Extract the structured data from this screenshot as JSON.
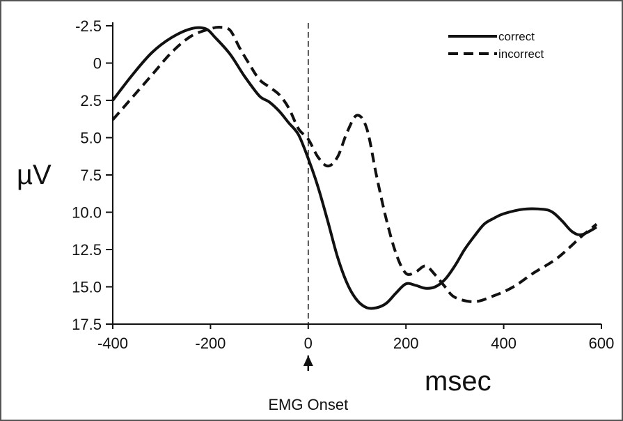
{
  "chart_data": {
    "type": "line",
    "title": "",
    "xlabel": "msec",
    "ylabel": "µV",
    "xlim": [
      -400,
      600
    ],
    "ylim": [
      -2.5,
      17.5
    ],
    "y_inverted": true,
    "grid": false,
    "legend_position": "top-right",
    "x_ticks": [
      -400,
      -200,
      0,
      200,
      400,
      600
    ],
    "x_tick_labels": [
      "-400",
      "-200",
      "0",
      "200",
      "400",
      "600"
    ],
    "y_ticks": [
      -2.5,
      0,
      2.5,
      5,
      7.5,
      10,
      12.5,
      15,
      17.5
    ],
    "y_tick_labels": [
      "-2.5",
      "0",
      "2.5",
      "5.0",
      "7.5",
      "10.0",
      "12.5",
      "15.0",
      "17.5"
    ],
    "vline": {
      "x": 0,
      "style": "dashed"
    },
    "annotation": {
      "text": "EMG Onset",
      "x": 0
    },
    "series": [
      {
        "name": "correct",
        "style": "solid",
        "color": "#111111",
        "x": [
          -400,
          -360,
          -320,
          -280,
          -240,
          -210,
          -190,
          -160,
          -130,
          -100,
          -80,
          -60,
          -40,
          -20,
          0,
          20,
          40,
          60,
          80,
          100,
          120,
          140,
          160,
          180,
          200,
          220,
          240,
          260,
          280,
          300,
          320,
          340,
          360,
          380,
          400,
          440,
          480,
          500,
          520,
          540,
          560,
          590
        ],
        "y": [
          2.5,
          0.8,
          -0.7,
          -1.7,
          -2.3,
          -2.3,
          -1.7,
          -0.6,
          0.9,
          2.2,
          2.6,
          3.2,
          4.0,
          4.8,
          6.4,
          8.3,
          10.6,
          13.0,
          14.8,
          15.9,
          16.4,
          16.4,
          16.1,
          15.4,
          14.8,
          14.9,
          15.1,
          15.0,
          14.5,
          13.6,
          12.5,
          11.6,
          10.8,
          10.4,
          10.1,
          9.8,
          9.8,
          10.0,
          10.6,
          11.3,
          11.5,
          11.0
        ]
      },
      {
        "name": "incorrect",
        "style": "dashed",
        "color": "#111111",
        "x": [
          -400,
          -360,
          -320,
          -280,
          -240,
          -200,
          -180,
          -160,
          -140,
          -120,
          -100,
          -80,
          -60,
          -40,
          -20,
          0,
          20,
          40,
          60,
          80,
          100,
          120,
          140,
          160,
          180,
          200,
          220,
          240,
          260,
          280,
          300,
          340,
          380,
          420,
          460,
          500,
          520,
          540,
          560,
          590
        ],
        "y": [
          3.8,
          2.3,
          0.8,
          -0.7,
          -1.8,
          -2.3,
          -2.4,
          -2.2,
          -1.0,
          0.1,
          1.1,
          1.6,
          2.1,
          3.0,
          4.4,
          5.1,
          6.3,
          6.9,
          6.3,
          4.6,
          3.5,
          4.4,
          7.6,
          10.5,
          12.8,
          14.1,
          14.0,
          13.6,
          14.2,
          15.0,
          15.7,
          16.0,
          15.6,
          15.0,
          14.1,
          13.3,
          12.8,
          12.2,
          11.6,
          10.8
        ]
      }
    ]
  }
}
